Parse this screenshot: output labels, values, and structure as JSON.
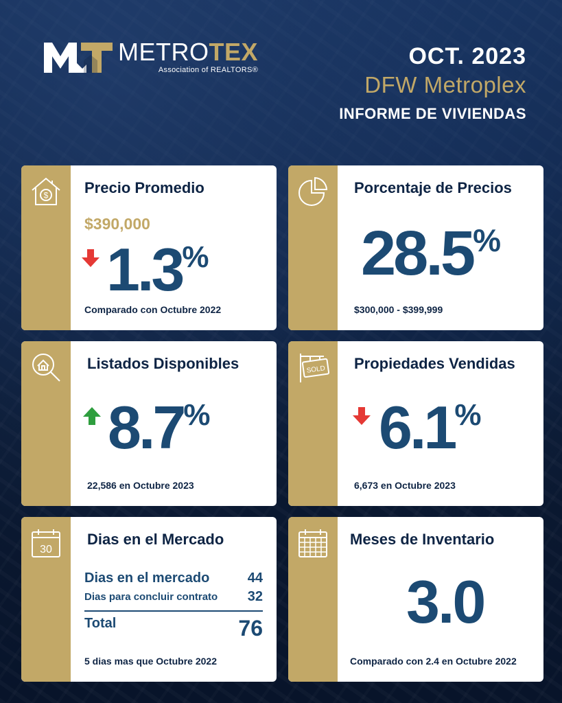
{
  "brand": {
    "name_main": "METRO",
    "name_accent": "TEX",
    "subtitle": "Association of REALTORS®"
  },
  "header": {
    "date": "OCT. 2023",
    "region": "DFW Metroplex",
    "report": "INFORME DE VIVIENDAS"
  },
  "cards": {
    "avg_price": {
      "title": "Precio Promedio",
      "price": "$390,000",
      "direction": "down",
      "value": "1.3",
      "unit": "%",
      "caption": "Comparado con Octubre 2022",
      "icon": "house-dollar-icon"
    },
    "price_pct": {
      "title": "Porcentaje de Precios",
      "value": "28.5",
      "unit": "%",
      "caption": "$300,000 - $399,999",
      "icon": "pie-chart-icon"
    },
    "listings": {
      "title": "Listados Disponibles",
      "direction": "up",
      "value": "8.7",
      "unit": "%",
      "caption": "22,586 en Octubre 2023",
      "icon": "house-search-icon"
    },
    "sold": {
      "title": "Propiedades Vendidas",
      "direction": "down",
      "value": "6.1",
      "unit": "%",
      "caption": "6,673 en Octubre 2023",
      "icon": "sold-sign-icon",
      "icon_text": "SOLD"
    },
    "days": {
      "title": "Dias en el Mercado",
      "row1_label": "Dias en el mercado",
      "row1_value": "44",
      "row2_label": "Dias para concluir contrato",
      "row2_value": "32",
      "total_label": "Total",
      "total_value": "76",
      "caption": "5 dias mas que Octubre 2022",
      "icon": "calendar-30-icon",
      "icon_text": "30"
    },
    "inventory": {
      "title": "Meses de Inventario",
      "value": "3.0",
      "caption": "Comparado con 2.4 en Octubre 2022",
      "icon": "calendar-grid-icon"
    }
  },
  "colors": {
    "gold": "#c2a867",
    "navy": "#0e2444",
    "blue": "#1c4a73",
    "down": "#e53935",
    "up": "#2e9e3e"
  }
}
